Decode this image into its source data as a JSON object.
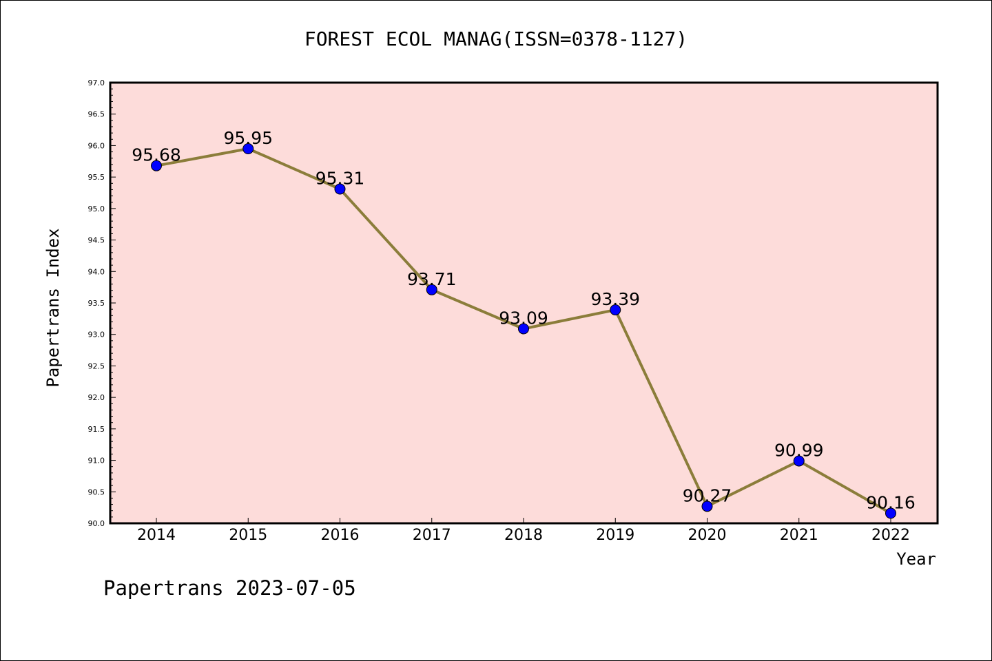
{
  "chart_data": {
    "type": "line",
    "title": "FOREST ECOL MANAG(ISSN=0378-1127)",
    "xlabel": "Year",
    "ylabel": "Papertrans Index",
    "footer": "Papertrans 2023-07-05",
    "x": [
      "2014",
      "2015",
      "2016",
      "2017",
      "2018",
      "2019",
      "2020",
      "2021",
      "2022"
    ],
    "series": [
      {
        "values": [
          95.68,
          95.95,
          95.31,
          93.71,
          93.09,
          93.39,
          90.27,
          90.99,
          90.16
        ],
        "labels": [
          "95.68",
          "95.95",
          "95.31",
          "93.71",
          "93.09",
          "93.39",
          "90.27",
          "90.99",
          "90.16"
        ],
        "line_color": "#8b7d3a",
        "marker_color": "#0000ff"
      }
    ],
    "ylim": [
      90.0,
      97.0
    ],
    "yticks": [
      "90.0",
      "90.5",
      "91.0",
      "91.5",
      "92.0",
      "92.5",
      "93.0",
      "93.5",
      "94.0",
      "94.5",
      "95.0",
      "95.5",
      "96.0",
      "96.5",
      "97.0"
    ],
    "plot_background": "#fddcda",
    "grid": false
  }
}
